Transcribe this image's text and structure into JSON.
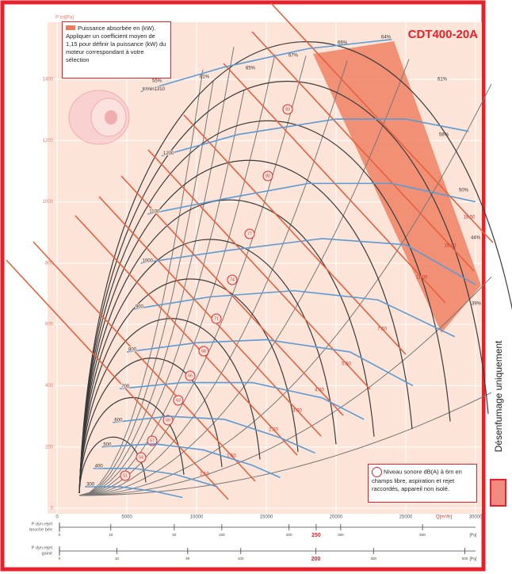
{
  "chart_data": {
    "type": "line",
    "title": "CDT400-20A",
    "y_axis_label": "P tot[Pa]",
    "x_axis_label": "Q[m³/h]",
    "xlim": [
      0,
      30000
    ],
    "ylim": [
      0,
      1400
    ],
    "xticks": [
      0,
      5000,
      10000,
      15000,
      20000,
      25000,
      30000
    ],
    "yticks": [
      0,
      200,
      400,
      600,
      800,
      1000,
      1200,
      1400
    ],
    "series": [
      {
        "name": "300",
        "color": "#5b9bd5",
        "x": [
          2000,
          4500,
          7000,
          9000
        ],
        "values": [
          70,
          70,
          55,
          35
        ]
      },
      {
        "name": "400",
        "color": "#5b9bd5",
        "x": [
          2600,
          5500,
          8500,
          11500
        ],
        "values": [
          130,
          130,
          110,
          70
        ]
      },
      {
        "name": "500",
        "color": "#5b9bd5",
        "x": [
          3200,
          7000,
          10500,
          14000,
          16000
        ],
        "values": [
          200,
          210,
          190,
          140,
          100
        ]
      },
      {
        "name": "600",
        "color": "#5b9bd5",
        "x": [
          4000,
          8000,
          12000,
          16000,
          18500
        ],
        "values": [
          280,
          300,
          290,
          230,
          180
        ]
      },
      {
        "name": "700",
        "color": "#5b9bd5",
        "x": [
          4500,
          9000,
          14000,
          19000,
          22000
        ],
        "values": [
          390,
          410,
          410,
          360,
          290
        ]
      },
      {
        "name": "800",
        "color": "#5b9bd5",
        "x": [
          5000,
          10000,
          15000,
          21000,
          25500
        ],
        "values": [
          510,
          540,
          550,
          510,
          400
        ]
      },
      {
        "name": "900",
        "color": "#5b9bd5",
        "x": [
          5500,
          11000,
          17000,
          23000,
          28500
        ],
        "values": [
          650,
          690,
          710,
          680,
          560
        ]
      },
      {
        "name": "1000",
        "color": "#5b9bd5",
        "x": [
          6000,
          12000,
          19000,
          25000,
          30000
        ],
        "values": [
          800,
          840,
          880,
          860,
          730
        ]
      },
      {
        "name": "1100",
        "color": "#5b9bd5",
        "x": [
          6500,
          12000,
          18000,
          24000,
          30000
        ],
        "values": [
          960,
          1010,
          1060,
          1060,
          1000
        ]
      },
      {
        "name": "1200",
        "color": "#5b9bd5",
        "x": [
          7500,
          13000,
          20000,
          25000,
          29500
        ],
        "values": [
          1150,
          1220,
          1270,
          1270,
          1230
        ]
      },
      {
        "name": "tr/min1310",
        "color": "#5b9bd5",
        "x": [
          6000,
          12000,
          18000,
          24000
        ],
        "values": [
          1360,
          1440,
          1500,
          1530
        ]
      }
    ],
    "efficiency_labels": [
      "55%",
      "61%",
      "65%",
      "67%",
      "66%",
      "64%",
      "61%",
      "56%",
      "50%",
      "44%",
      "39%"
    ],
    "power_labels": [
      "18.50",
      "15.00",
      "11.00",
      "7.50",
      "5.50",
      "4.00",
      "3.00",
      "2.20",
      "1.50",
      "1.10"
    ],
    "noise_labels": [
      83,
      80,
      77,
      74,
      71,
      68,
      66,
      63,
      60,
      57,
      54,
      51
    ],
    "power_note": "Puissance absorbée en (kW). Appliquer un coefficient moyen de 1,15 pour définir la puissance (kW) du moteur correspondant à votre sélection",
    "noise_note": "Niveau sonore dB(A) à 6m en champs libre, aspiration et rejet raccordés, appareil non isolé.",
    "side_label": "Désenfumage uniquement",
    "scales": [
      {
        "label": [
          "P dyn rejet",
          "bouche bée"
        ],
        "ticks": [
          0,
          10,
          50,
          100,
          200,
          250,
          300,
          500
        ],
        "highlight": 250,
        "unit": "[Pa]"
      },
      {
        "label": [
          "P dyn rejet",
          "gainé"
        ],
        "ticks": [
          0,
          10,
          50,
          100,
          200,
          300,
          500
        ],
        "highlight": 200,
        "unit": "[Pa]"
      }
    ]
  }
}
